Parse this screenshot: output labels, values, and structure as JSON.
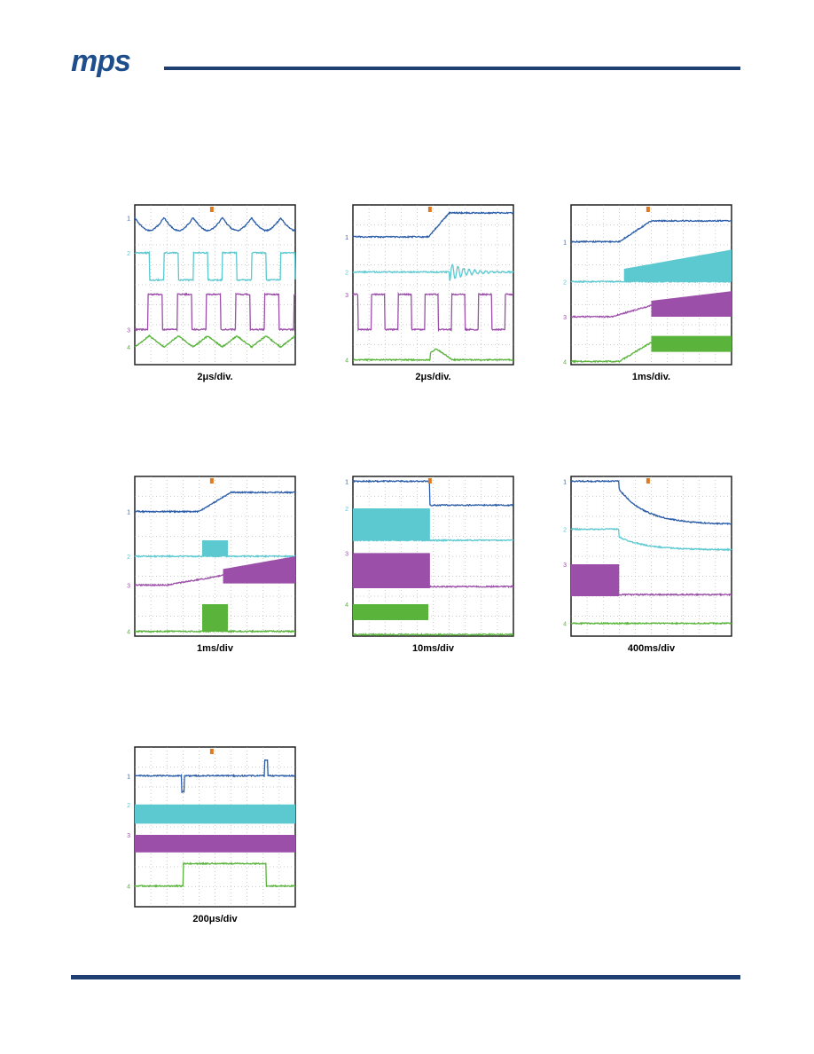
{
  "header": {
    "logo": "mps"
  },
  "scopes": [
    {
      "caption": "2μs/div.",
      "channels": [
        "1",
        "2",
        "3",
        "4"
      ]
    },
    {
      "caption": "2μs/div.",
      "channels": [
        "1",
        "2",
        "3",
        "4"
      ]
    },
    {
      "caption": "1ms/div.",
      "channels": [
        "1",
        "2",
        "3",
        "4"
      ]
    },
    {
      "caption": "1ms/div",
      "channels": [
        "1",
        "2",
        "3",
        "4"
      ]
    },
    {
      "caption": "10ms/div",
      "channels": [
        "1",
        "2",
        "3",
        "4"
      ]
    },
    {
      "caption": "400ms/div",
      "channels": [
        "1",
        "2",
        "3",
        "4"
      ]
    },
    {
      "caption": "200μs/div",
      "channels": [
        "1",
        "2",
        "3",
        "4"
      ]
    }
  ]
}
